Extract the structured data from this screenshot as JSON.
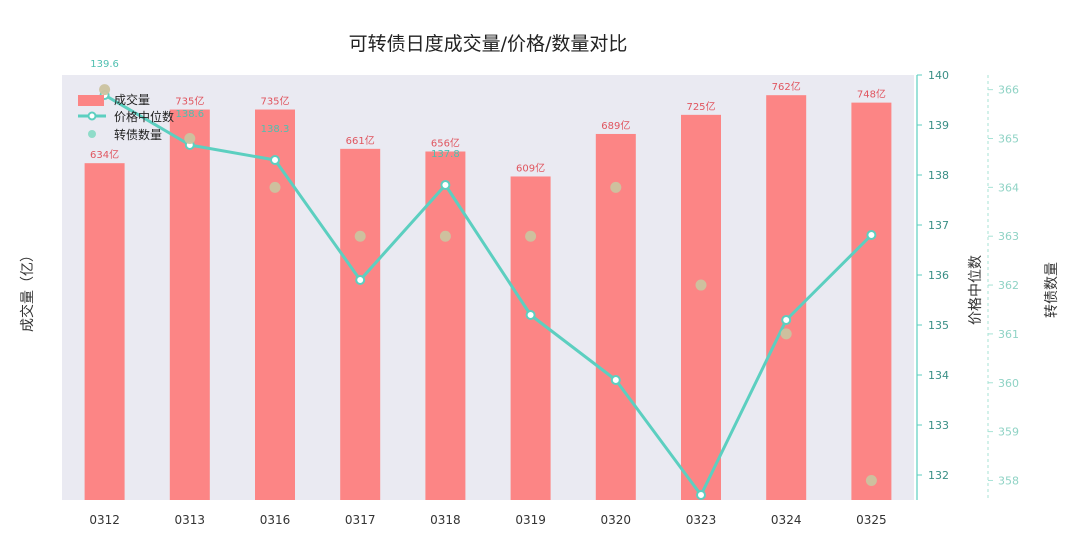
{
  "chart_data": {
    "type": "bar",
    "title": "可转债日度成交量/价格/数量对比",
    "categories": [
      "0312",
      "0313",
      "0316",
      "0317",
      "0318",
      "0319",
      "0320",
      "0323",
      "0324",
      "0325"
    ],
    "ylabel": "成交量（亿）",
    "y2label": "价格中位数",
    "y3label": "转债数量",
    "ylim": [
      0,
      800
    ],
    "y2lim": [
      131.5,
      140
    ],
    "y2ticks": [
      132,
      133,
      134,
      135,
      136,
      137,
      138,
      139,
      140
    ],
    "y3lim": [
      357.6,
      366.3
    ],
    "y3ticks": [
      358,
      359,
      360,
      361,
      362,
      363,
      364,
      365,
      366
    ],
    "grid": false,
    "legend_position": "top-left",
    "colors": {
      "bar": "#fc8585",
      "line": "#5ccfc0",
      "dots": "#cbc39f",
      "background": "#eaeaf2"
    },
    "series": [
      {
        "name": "成交量",
        "type": "bar",
        "axis": "left",
        "values": [
          634,
          735,
          735,
          661,
          656,
          609,
          689,
          725,
          762,
          748
        ],
        "labels": [
          "634亿",
          "735亿",
          "735亿",
          "661亿",
          "656亿",
          "609亿",
          "689亿",
          "725亿",
          "762亿",
          "748亿"
        ]
      },
      {
        "name": "价格中位数",
        "type": "line",
        "axis": "right",
        "values": [
          139.6,
          138.6,
          138.3,
          135.9,
          137.8,
          135.2,
          133.9,
          131.6,
          135.1,
          136.8
        ],
        "labels": [
          "139.6",
          "138.6",
          "138.3",
          "",
          "137.8",
          "",
          "",
          "",
          "",
          ""
        ]
      },
      {
        "name": "转债数量",
        "type": "scatter",
        "axis": "right2",
        "values": [
          366,
          365,
          364,
          363,
          363,
          363,
          364,
          362,
          361,
          358
        ]
      }
    ]
  }
}
